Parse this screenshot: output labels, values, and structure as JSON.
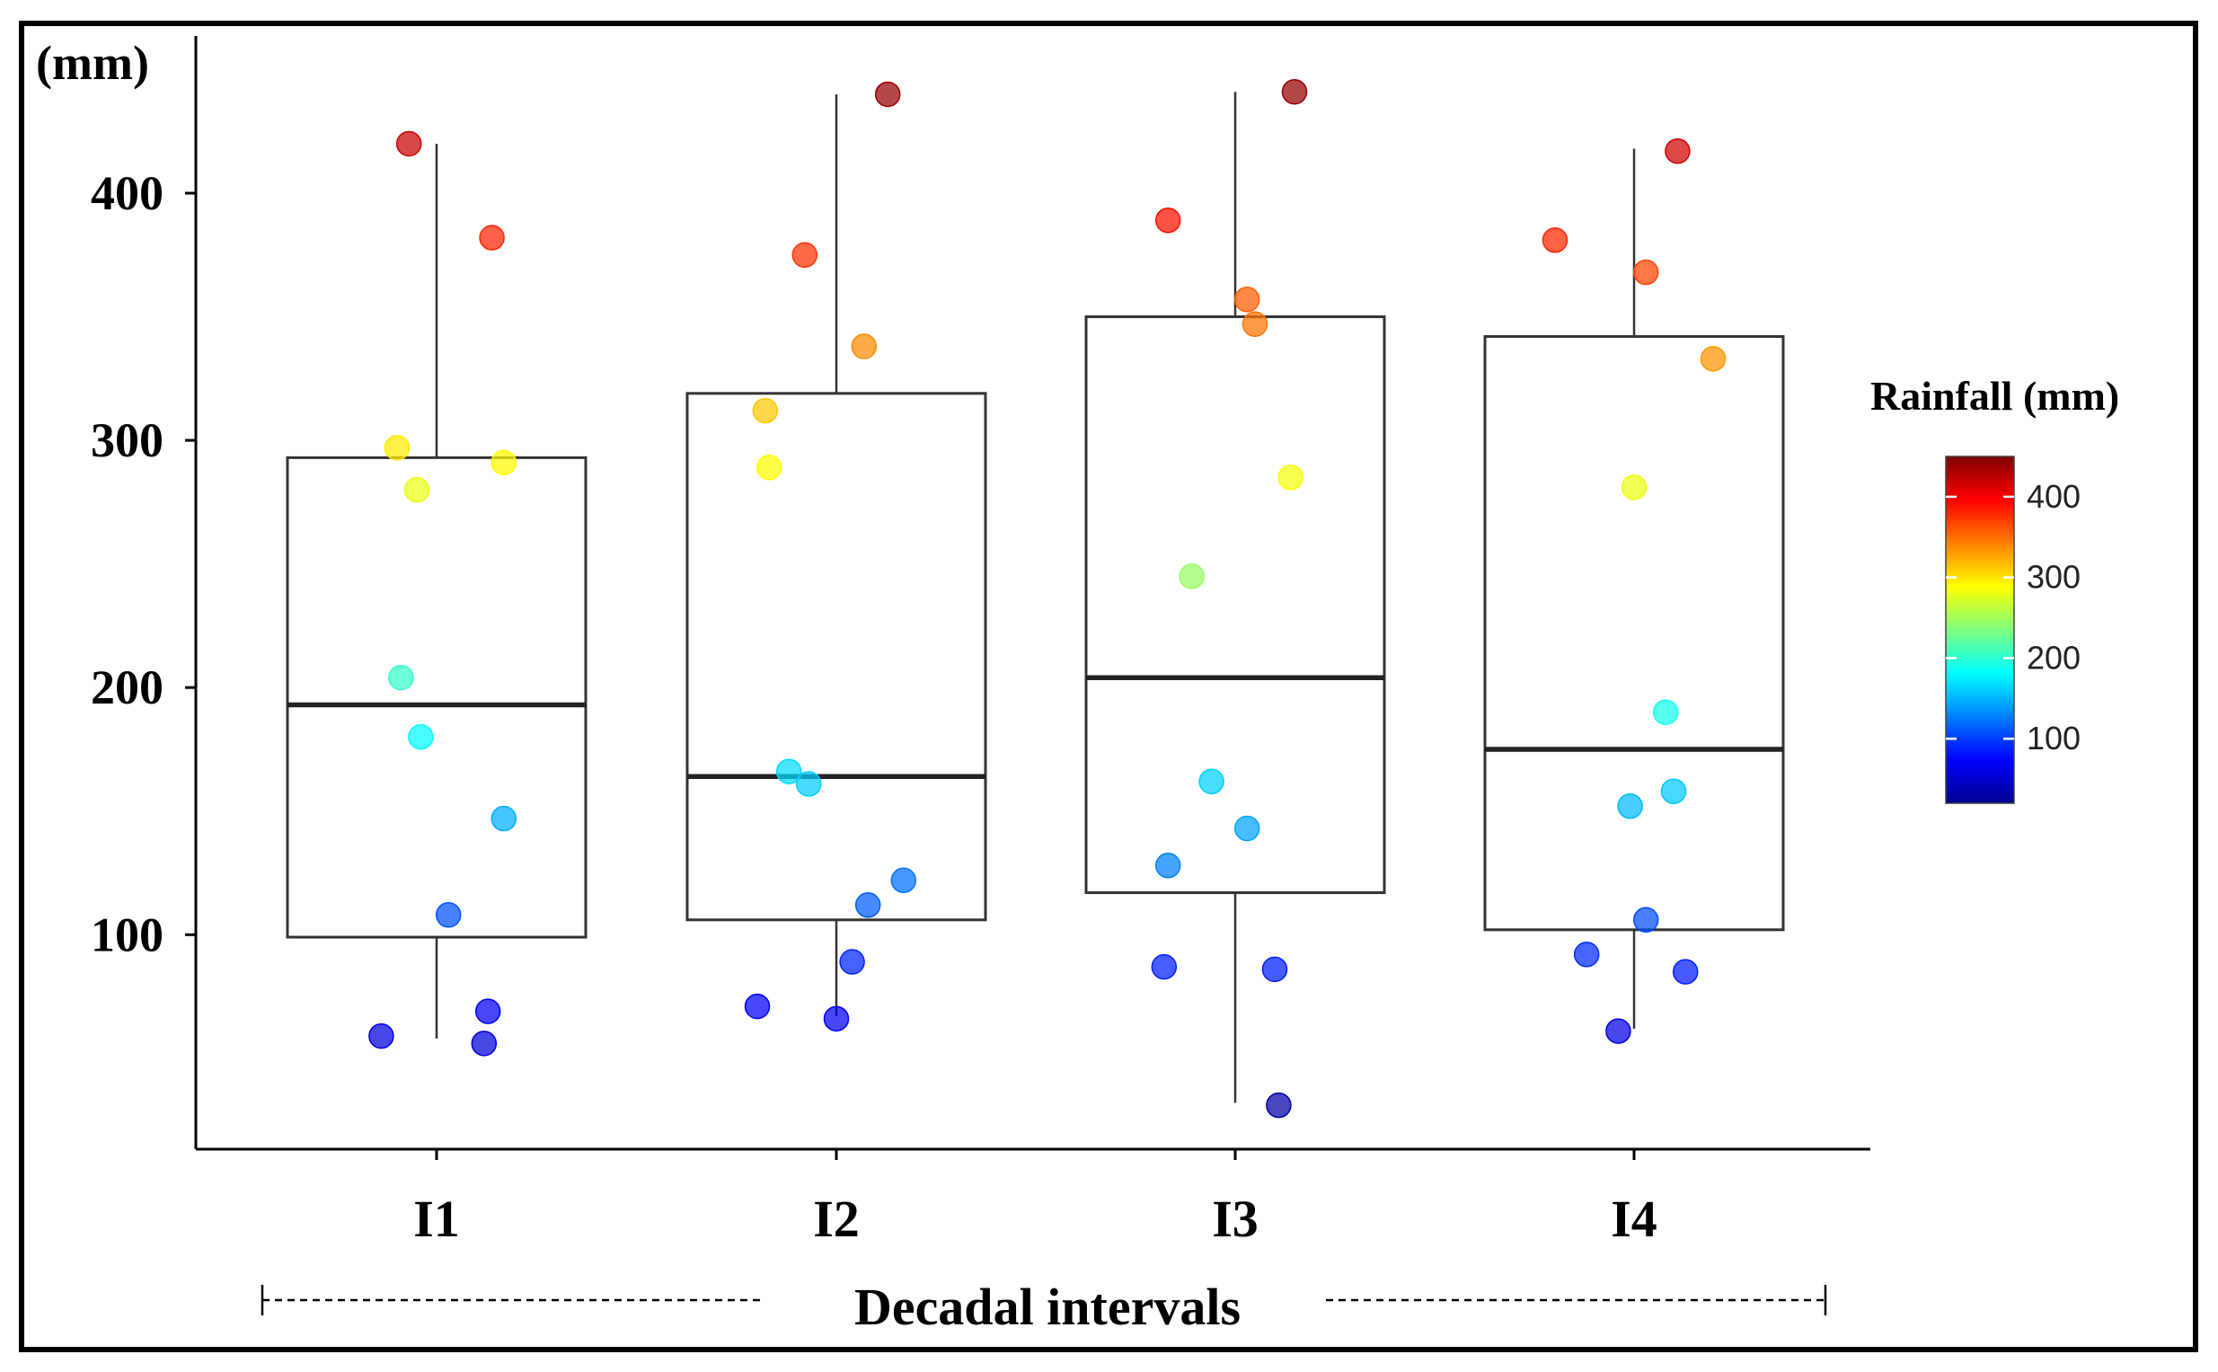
{
  "chart_data": {
    "type": "box-jitter",
    "ylabel": "(mm)",
    "xlabel": "Decadal intervals",
    "ylim": [
      0,
      450
    ],
    "yticks": [
      "100",
      "200",
      "300",
      "400"
    ],
    "categories": [
      "I1",
      "I2",
      "I3",
      "I4"
    ],
    "boxes": [
      {
        "category": "I1",
        "q1": 99,
        "median": 193,
        "q3": 293,
        "whisker_low": 58,
        "whisker_high": 420
      },
      {
        "category": "I2",
        "q1": 106,
        "median": 164,
        "q3": 319,
        "whisker_low": 67,
        "whisker_high": 440
      },
      {
        "category": "I3",
        "q1": 117,
        "median": 204,
        "q3": 350,
        "whisker_low": 32,
        "whisker_high": 441
      },
      {
        "category": "I4",
        "q1": 102,
        "median": 175,
        "q3": 342,
        "whisker_low": 62,
        "whisker_high": 418
      }
    ],
    "points": [
      {
        "category": "I1",
        "jitter": -0.07,
        "value": 420
      },
      {
        "category": "I1",
        "jitter": 0.14,
        "value": 382
      },
      {
        "category": "I1",
        "jitter": -0.1,
        "value": 297
      },
      {
        "category": "I1",
        "jitter": 0.17,
        "value": 291
      },
      {
        "category": "I1",
        "jitter": -0.05,
        "value": 280
      },
      {
        "category": "I1",
        "jitter": -0.09,
        "value": 204
      },
      {
        "category": "I1",
        "jitter": -0.04,
        "value": 180
      },
      {
        "category": "I1",
        "jitter": 0.17,
        "value": 147
      },
      {
        "category": "I1",
        "jitter": 0.03,
        "value": 108
      },
      {
        "category": "I1",
        "jitter": 0.13,
        "value": 69
      },
      {
        "category": "I1",
        "jitter": -0.14,
        "value": 59
      },
      {
        "category": "I1",
        "jitter": 0.12,
        "value": 56
      },
      {
        "category": "I2",
        "jitter": 0.13,
        "value": 440
      },
      {
        "category": "I2",
        "jitter": -0.08,
        "value": 375
      },
      {
        "category": "I2",
        "jitter": 0.07,
        "value": 338
      },
      {
        "category": "I2",
        "jitter": -0.18,
        "value": 312
      },
      {
        "category": "I2",
        "jitter": -0.17,
        "value": 289
      },
      {
        "category": "I2",
        "jitter": -0.12,
        "value": 166
      },
      {
        "category": "I2",
        "jitter": -0.07,
        "value": 161
      },
      {
        "category": "I2",
        "jitter": 0.17,
        "value": 122
      },
      {
        "category": "I2",
        "jitter": 0.08,
        "value": 112
      },
      {
        "category": "I2",
        "jitter": 0.04,
        "value": 89
      },
      {
        "category": "I2",
        "jitter": -0.2,
        "value": 71
      },
      {
        "category": "I2",
        "jitter": 0.0,
        "value": 66
      },
      {
        "category": "I3",
        "jitter": 0.15,
        "value": 441
      },
      {
        "category": "I3",
        "jitter": -0.17,
        "value": 389
      },
      {
        "category": "I3",
        "jitter": 0.03,
        "value": 357
      },
      {
        "category": "I3",
        "jitter": 0.05,
        "value": 347
      },
      {
        "category": "I3",
        "jitter": 0.14,
        "value": 285
      },
      {
        "category": "I3",
        "jitter": -0.11,
        "value": 245
      },
      {
        "category": "I3",
        "jitter": -0.06,
        "value": 162
      },
      {
        "category": "I3",
        "jitter": 0.03,
        "value": 143
      },
      {
        "category": "I3",
        "jitter": -0.17,
        "value": 128
      },
      {
        "category": "I3",
        "jitter": -0.18,
        "value": 87
      },
      {
        "category": "I3",
        "jitter": 0.1,
        "value": 86
      },
      {
        "category": "I3",
        "jitter": 0.11,
        "value": 31
      },
      {
        "category": "I4",
        "jitter": 0.11,
        "value": 417
      },
      {
        "category": "I4",
        "jitter": -0.2,
        "value": 381
      },
      {
        "category": "I4",
        "jitter": 0.03,
        "value": 368
      },
      {
        "category": "I4",
        "jitter": 0.2,
        "value": 333
      },
      {
        "category": "I4",
        "jitter": 0.0,
        "value": 281
      },
      {
        "category": "I4",
        "jitter": 0.08,
        "value": 190
      },
      {
        "category": "I4",
        "jitter": 0.1,
        "value": 158
      },
      {
        "category": "I4",
        "jitter": -0.01,
        "value": 152
      },
      {
        "category": "I4",
        "jitter": 0.03,
        "value": 106
      },
      {
        "category": "I4",
        "jitter": -0.12,
        "value": 92
      },
      {
        "category": "I4",
        "jitter": 0.13,
        "value": 85
      },
      {
        "category": "I4",
        "jitter": -0.04,
        "value": 61
      }
    ],
    "legend": {
      "title": "Rainfall (mm)",
      "range": [
        20,
        450
      ],
      "ticks": [
        "100",
        "200",
        "300",
        "400"
      ],
      "colormap": "jet"
    }
  },
  "colors": {
    "frame": "#000000",
    "box_stroke": "#333333",
    "median": "#222222",
    "colormap_stops": [
      "#00008f",
      "#0000ff",
      "#00ffff",
      "#7fff7f",
      "#ffff00",
      "#ff0000",
      "#800000"
    ]
  }
}
